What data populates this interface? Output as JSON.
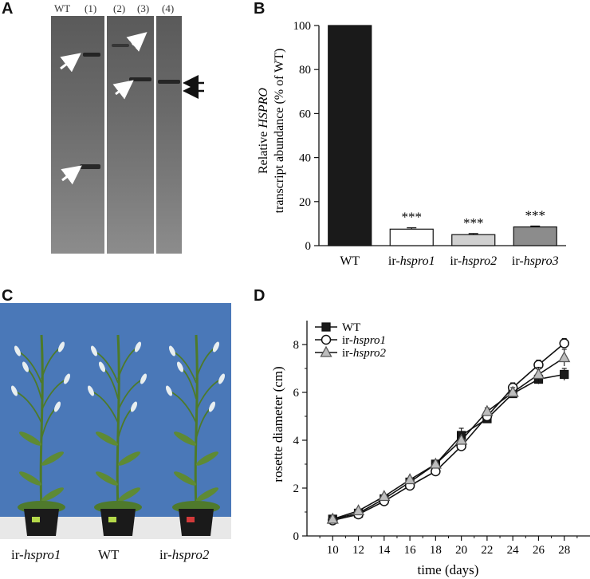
{
  "panel_letters": {
    "a": "A",
    "b": "B",
    "c": "C",
    "d": "D"
  },
  "gel": {
    "lanes": [
      "WT",
      "(1)",
      "(2)",
      "(3)",
      "(4)"
    ]
  },
  "photo": {
    "labels": [
      "ir-",
      "hspro1",
      "WT",
      "ir-",
      "hspro2"
    ],
    "colors": {
      "background": "#4a78b8",
      "pot": "#1a1a1a",
      "stem": "#4d7a2a",
      "leaf": "#5e8a35",
      "floor": "#e8e8e8"
    }
  },
  "chart_data": [
    {
      "type": "bar",
      "categories": [
        "WT",
        "ir-hspro1",
        "ir-hspro2",
        "ir-hspro3"
      ],
      "category_display": [
        [
          "WT",
          ""
        ],
        [
          "ir-",
          "hspro1"
        ],
        [
          "ir-",
          "hspro2"
        ],
        [
          "ir-",
          "hspro3"
        ]
      ],
      "values": [
        100,
        7.5,
        5,
        8.5
      ],
      "errors": [
        0,
        0.6,
        0.5,
        0.4
      ],
      "annotations": [
        "",
        "***",
        "***",
        "***"
      ],
      "bar_colors": [
        "#1a1a1a",
        "#ffffff",
        "#d0d0d0",
        "#8c8c8c"
      ],
      "ylabel_line1_pre": "Relative ",
      "ylabel_line1_em": "HSPRO",
      "ylabel_line2": "transcript abundance (% of WT)",
      "ylim": [
        0,
        100
      ],
      "yticks": [
        "0",
        "20",
        "40",
        "60",
        "80",
        "100"
      ]
    },
    {
      "type": "line",
      "xlabel": "time (days)",
      "ylabel": "rosette diameter (cm)",
      "x": [
        10,
        12,
        14,
        16,
        18,
        20,
        22,
        24,
        26,
        28
      ],
      "xticks": [
        "10",
        "12",
        "14",
        "16",
        "18",
        "20",
        "22",
        "24",
        "26",
        "28"
      ],
      "yticks": [
        "0",
        "2",
        "4",
        "6",
        "8"
      ],
      "xlim": [
        8,
        30
      ],
      "ylim": [
        0,
        9
      ],
      "series": [
        {
          "name": "WT",
          "name_pre": "WT",
          "name_em": "",
          "marker": "square",
          "fill": "#1a1a1a",
          "values": [
            0.7,
            0.95,
            1.55,
            2.25,
            3.0,
            4.2,
            4.9,
            5.95,
            6.55,
            6.75
          ],
          "errors": [
            0.05,
            0.06,
            0.07,
            0.08,
            0.1,
            0.3,
            0.15,
            0.15,
            0.2,
            0.25
          ]
        },
        {
          "name": "ir-hspro1",
          "name_pre": "ir-",
          "name_em": "hspro1",
          "marker": "circle",
          "fill": "#ffffff",
          "values": [
            0.65,
            0.9,
            1.45,
            2.1,
            2.7,
            3.75,
            5.0,
            6.2,
            7.15,
            8.05
          ],
          "errors": [
            0.05,
            0.06,
            0.07,
            0.08,
            0.1,
            0.12,
            0.15,
            0.2,
            0.2,
            0.2
          ]
        },
        {
          "name": "ir-hspro2",
          "name_pre": "ir-",
          "name_em": "hspro2",
          "marker": "triangle",
          "fill": "#bdbdbd",
          "values": [
            0.7,
            1.05,
            1.65,
            2.35,
            3.0,
            4.0,
            5.2,
            6.0,
            6.75,
            7.45
          ],
          "errors": [
            0.05,
            0.06,
            0.07,
            0.08,
            0.1,
            0.12,
            0.15,
            0.2,
            0.3,
            0.35
          ]
        }
      ]
    }
  ]
}
